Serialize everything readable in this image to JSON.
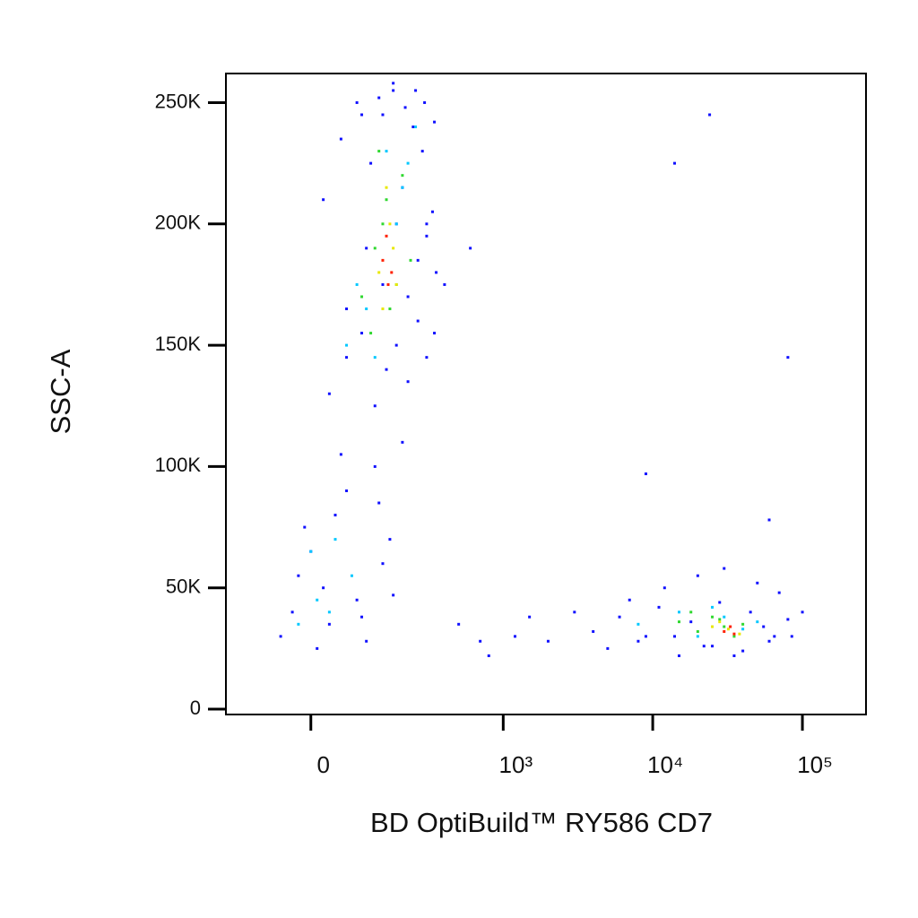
{
  "chart_data": {
    "type": "scatter",
    "x_label": "BD OptiBuild™ RY586 CD7",
    "y_label": "SSC-A",
    "xscale": "biexponential",
    "xlim": [
      -178,
      266000
    ],
    "ylim": [
      -2200,
      262000
    ],
    "xticks": [
      0,
      {
        "value": 1000,
        "label": "10³"
      },
      {
        "value": 10000,
        "label": "10⁴"
      },
      {
        "value": 100000,
        "label": "10⁵"
      }
    ],
    "yticks": [
      0,
      {
        "value": 50000,
        "label": "50K"
      },
      {
        "value": 100000,
        "label": "100K"
      },
      {
        "value": 150000,
        "label": "150K"
      },
      {
        "value": 200000,
        "label": "200K"
      },
      {
        "value": 250000,
        "label": "250K"
      }
    ],
    "grid": false,
    "series": [
      {
        "color": "#1010ff",
        "x": [
          -50,
          -20,
          10,
          40,
          80,
          120,
          160,
          -30,
          0,
          30,
          60,
          100,
          140,
          -10,
          20,
          50,
          90,
          130,
          170,
          200,
          30,
          60,
          90,
          120,
          150,
          180,
          220,
          260,
          300,
          340,
          20,
          50,
          80,
          110,
          140,
          170,
          200,
          240,
          280,
          330,
          60,
          100,
          140,
          180,
          220,
          260,
          300,
          350,
          400,
          90,
          130,
          170,
          210,
          250,
          290,
          340,
          500,
          700,
          3000,
          5000,
          7000,
          9000,
          12000,
          15000,
          20000,
          25000,
          30000,
          40000,
          50000,
          60000,
          70000,
          85000,
          100000,
          4000,
          6000,
          8000,
          11000,
          14000,
          18000,
          22000,
          28000,
          35000,
          45000,
          55000,
          65000,
          80000,
          300,
          600,
          1200,
          2000,
          800,
          1500,
          9000,
          80000,
          60000,
          14000,
          24000
        ],
        "y": [
          30000,
          55000,
          25000,
          80000,
          45000,
          100000,
          70000,
          40000,
          65000,
          35000,
          90000,
          28000,
          60000,
          75000,
          50000,
          105000,
          38000,
          85000,
          47000,
          110000,
          130000,
          145000,
          155000,
          125000,
          140000,
          150000,
          135000,
          160000,
          145000,
          155000,
          210000,
          235000,
          250000,
          225000,
          245000,
          255000,
          215000,
          240000,
          230000,
          205000,
          165000,
          190000,
          175000,
          200000,
          170000,
          185000,
          195000,
          180000,
          175000,
          245000,
          252000,
          258000,
          248000,
          255000,
          250000,
          242000,
          35000,
          28000,
          40000,
          25000,
          45000,
          30000,
          50000,
          22000,
          55000,
          26000,
          58000,
          24000,
          52000,
          28000,
          48000,
          30000,
          40000,
          32000,
          38000,
          28000,
          42000,
          30000,
          36000,
          26000,
          44000,
          22000,
          40000,
          34000,
          30000,
          37000,
          200000,
          190000,
          30000,
          28000,
          22000,
          38000,
          97000,
          145000,
          78000,
          225000,
          245000
        ]
      },
      {
        "color": "#00c8ff",
        "x": [
          -20,
          10,
          40,
          70,
          0,
          30,
          60,
          100,
          150,
          200,
          250,
          120,
          180,
          80,
          220,
          8000,
          15000,
          20000,
          30000,
          40000,
          50000,
          25000
        ],
        "y": [
          35000,
          45000,
          70000,
          55000,
          65000,
          40000,
          150000,
          165000,
          230000,
          215000,
          240000,
          145000,
          200000,
          175000,
          225000,
          35000,
          40000,
          30000,
          38000,
          33000,
          36000,
          42000
        ]
      },
      {
        "color": "#30d830",
        "x": [
          90,
          120,
          150,
          180,
          110,
          140,
          200,
          160,
          130,
          230,
          15000,
          20000,
          25000,
          30000,
          35000,
          40000,
          18000,
          28000
        ],
        "y": [
          170000,
          190000,
          210000,
          175000,
          155000,
          200000,
          220000,
          165000,
          230000,
          185000,
          36000,
          32000,
          38000,
          34000,
          30000,
          35000,
          40000,
          37000
        ]
      },
      {
        "color": "#e8e800",
        "x": [
          130,
          160,
          140,
          170,
          150,
          180,
          25000,
          32000,
          38000,
          28000
        ],
        "y": [
          180000,
          200000,
          165000,
          190000,
          215000,
          175000,
          34000,
          33000,
          31000,
          36000
        ]
      },
      {
        "color": "#ff2000",
        "x": [
          140,
          155,
          150,
          165,
          30000,
          35000,
          33000
        ],
        "y": [
          185000,
          175000,
          195000,
          180000,
          32000,
          31000,
          34000
        ]
      }
    ]
  }
}
